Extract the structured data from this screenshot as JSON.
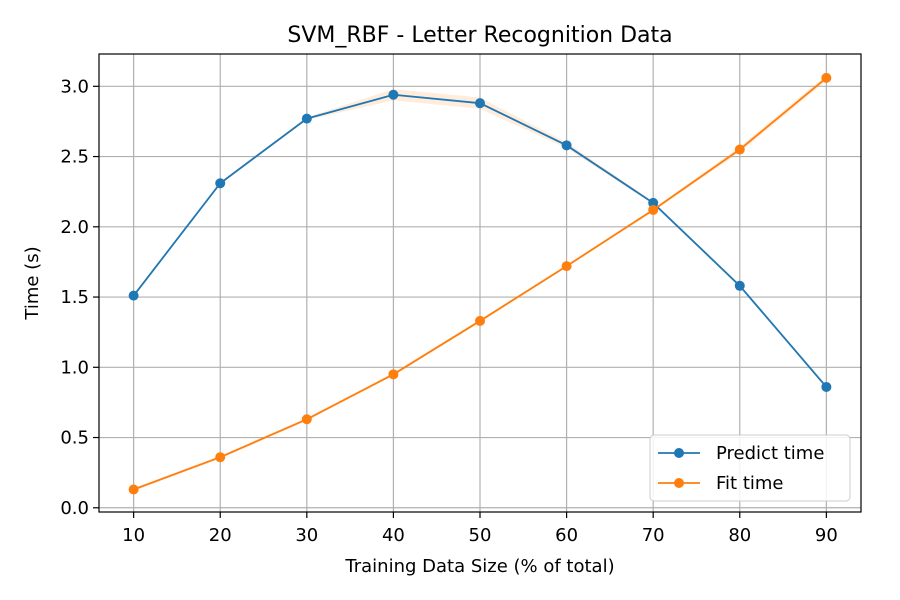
{
  "chart_data": {
    "type": "line",
    "title": "SVM_RBF - Letter Recognition Data",
    "xlabel": "Training Data Size (% of total)",
    "ylabel": "Time (s)",
    "x": [
      10,
      20,
      30,
      40,
      50,
      60,
      70,
      80,
      90
    ],
    "xlim": [
      6,
      94
    ],
    "ylim": [
      -0.03,
      3.23
    ],
    "xticks": [
      "10",
      "20",
      "30",
      "40",
      "50",
      "60",
      "70",
      "80",
      "90"
    ],
    "yticks": [
      "0.0",
      "0.5",
      "1.0",
      "1.5",
      "2.0",
      "2.5",
      "3.0"
    ],
    "grid": true,
    "legend_position": "lower-right",
    "series": [
      {
        "name": "Predict time",
        "color": "#1f77b4",
        "values": [
          1.51,
          2.31,
          2.77,
          2.94,
          2.88,
          2.58,
          2.17,
          1.58,
          0.86
        ],
        "band_low": [
          1.5,
          2.3,
          2.76,
          2.9,
          2.84,
          2.56,
          2.16,
          1.57,
          0.85
        ],
        "band_high": [
          1.52,
          2.32,
          2.78,
          2.98,
          2.92,
          2.6,
          2.18,
          1.59,
          0.87
        ]
      },
      {
        "name": "Fit time",
        "color": "#ff7f0e",
        "values": [
          0.13,
          0.36,
          0.63,
          0.95,
          1.33,
          1.72,
          2.12,
          2.55,
          3.06
        ],
        "band_low": [
          0.12,
          0.35,
          0.62,
          0.94,
          1.32,
          1.71,
          2.11,
          2.53,
          3.04
        ],
        "band_high": [
          0.14,
          0.37,
          0.64,
          0.96,
          1.34,
          1.73,
          2.13,
          2.57,
          3.08
        ]
      }
    ]
  }
}
